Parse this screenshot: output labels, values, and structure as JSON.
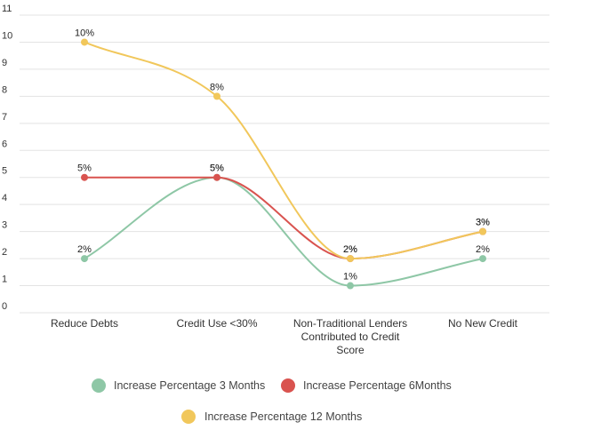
{
  "chart_data": {
    "type": "line",
    "categories": [
      "Reduce Debts",
      "Credit Use <30%",
      "Non-Traditional Lenders Contributed to Credit Score",
      "No New Credit"
    ],
    "category_lines": [
      [
        "Reduce Debts"
      ],
      [
        "Credit Use <30%"
      ],
      [
        "Non-Traditional Lenders",
        "Contributed to Credit",
        "Score"
      ],
      [
        "No New Credit"
      ]
    ],
    "y_ticks": [
      "0",
      "1",
      "2",
      "3",
      "4",
      "5",
      "6",
      "7",
      "8",
      "9",
      "10",
      "11"
    ],
    "ylim": [
      0,
      11
    ],
    "grid": true,
    "smooth": true,
    "legend_position": "bottom",
    "series": [
      {
        "name": "Increase Percentage 3 Months",
        "color": "#8ec7a6",
        "values": [
          2,
          5,
          1,
          2
        ],
        "labels": [
          "2%",
          "5%",
          "1%",
          "2%"
        ]
      },
      {
        "name": "Increase Percentage 6Months",
        "color": "#d9534f",
        "values": [
          5,
          5,
          2,
          3
        ],
        "labels": [
          "5%",
          "5%",
          "2%",
          "3%"
        ]
      },
      {
        "name": "Increase Percentage 12 Months",
        "color": "#f1c75b",
        "values": [
          10,
          8,
          2,
          3
        ],
        "labels": [
          "10%",
          "8%",
          "2%",
          "3%"
        ]
      }
    ]
  }
}
